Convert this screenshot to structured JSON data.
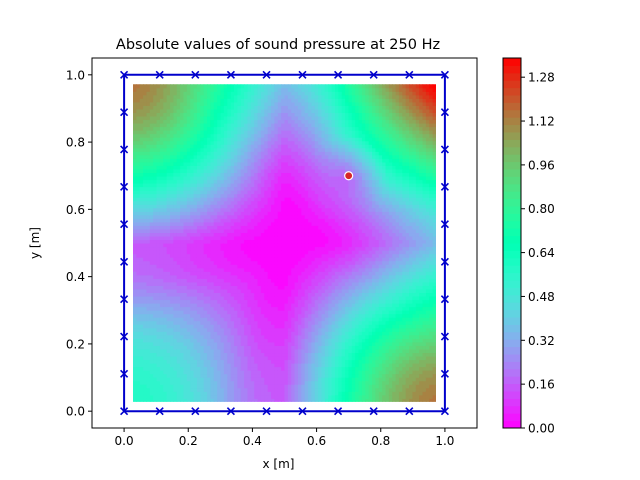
{
  "chart_data": {
    "type": "heatmap",
    "title": "Absolute values of sound pressure at 250 Hz",
    "xlabel": "x [m]",
    "ylabel": "y [m]",
    "xlim": [
      -0.1,
      1.1
    ],
    "ylim": [
      -0.05,
      1.05
    ],
    "x_ticks": [
      "0.0",
      "0.2",
      "0.4",
      "0.6",
      "0.8",
      "1.0"
    ],
    "y_ticks": [
      "0.0",
      "0.2",
      "0.4",
      "0.6",
      "0.8",
      "1.0"
    ],
    "colorbar": {
      "colormap": "rainbow",
      "range": [
        0.0,
        1.35
      ],
      "ticks": [
        "0.00",
        "0.16",
        "0.32",
        "0.48",
        "0.64",
        "0.80",
        "0.96",
        "1.12",
        "1.28"
      ],
      "levels": 50
    },
    "field_extent": {
      "x": [
        0.0278,
        0.9722
      ],
      "y": [
        0.0278,
        0.9722
      ]
    },
    "source": {
      "x": 0.7,
      "y": 0.7,
      "color": "#d62728"
    },
    "boundary": {
      "color": "#0000cc",
      "corners": [
        [
          0,
          0
        ],
        [
          1,
          0
        ],
        [
          1,
          1
        ],
        [
          0,
          1
        ]
      ],
      "x_markers": [
        0.0,
        0.111,
        0.222,
        0.333,
        0.444,
        0.556,
        0.667,
        0.778,
        0.889,
        1.0
      ]
    },
    "grid": false
  }
}
